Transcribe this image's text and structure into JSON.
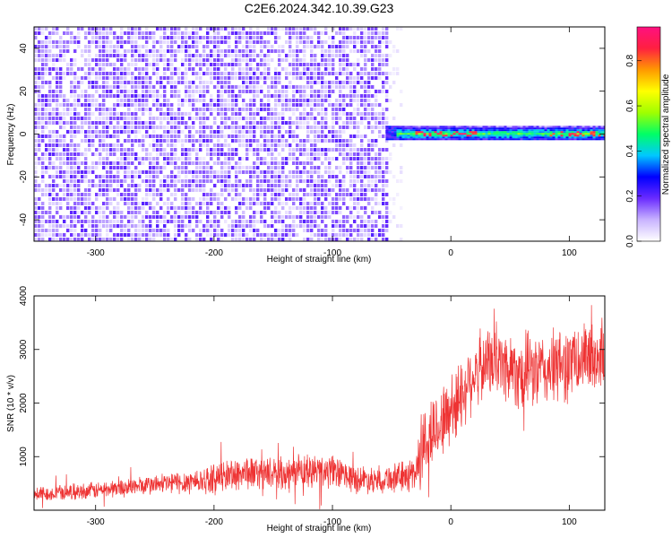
{
  "chart_data": [
    {
      "type": "heatmap",
      "title": "C2E6.2024.342.10.39.G23",
      "xlabel": "Height of straight line (km)",
      "ylabel": "Frequency (Hz)",
      "xlim": [
        -352,
        130
      ],
      "ylim": [
        -50,
        50
      ],
      "xticks": [
        -300,
        -200,
        -100,
        0,
        100
      ],
      "yticks": [
        -40,
        -20,
        0,
        20,
        40
      ],
      "colorbar": {
        "label": "Normalized spectral amplitude",
        "range": [
          0,
          0.95
        ],
        "ticks": [
          0.0,
          0.2,
          0.4,
          0.6,
          0.8
        ]
      },
      "regions": [
        {
          "x_range": [
            -352,
            -55
          ],
          "freq_range": [
            -50,
            50
          ],
          "amplitude": "low (0.0–0.15), noisy speckle"
        },
        {
          "x_range": [
            -55,
            130
          ],
          "freq_range": [
            -3,
            5
          ],
          "amplitude": "narrow line near 0–2 Hz, 0.3–0.95 with peaks ~0.9"
        }
      ],
      "grid": false
    },
    {
      "type": "line",
      "xlabel": "Height of straight line (km)",
      "ylabel": "SNR (10 * v/v)",
      "xlim": [
        -352,
        130
      ],
      "ylim": [
        0,
        4000
      ],
      "xticks": [
        -300,
        -200,
        -100,
        0,
        100
      ],
      "yticks": [
        1000,
        2000,
        3000,
        4000
      ],
      "series": [
        {
          "color": "#ee3333",
          "x": [
            -352,
            -300,
            -250,
            -200,
            -180,
            -150,
            -120,
            -100,
            -80,
            -60,
            -40,
            -30,
            -25,
            -20,
            -10,
            0,
            10,
            20,
            30,
            40,
            60,
            80,
            100,
            110,
            120,
            130
          ],
          "y_mean": [
            300,
            370,
            480,
            580,
            700,
            690,
            720,
            720,
            580,
            580,
            620,
            700,
            1100,
            1350,
            1600,
            1850,
            2200,
            2600,
            2750,
            2750,
            2600,
            2600,
            2750,
            2800,
            2850,
            2900
          ],
          "y_spread": [
            130,
            150,
            180,
            260,
            320,
            270,
            320,
            300,
            250,
            250,
            280,
            350,
            700,
            700,
            600,
            700,
            650,
            650,
            600,
            650,
            700,
            650,
            700,
            650,
            650,
            600
          ]
        }
      ],
      "grid": false
    }
  ],
  "colors": {
    "noise": "#6b1fe8",
    "line": "#ee3333",
    "colormap": [
      "#ffffff",
      "#c8b3ff",
      "#6a2bff",
      "#0000ff",
      "#00c8ff",
      "#00ff66",
      "#a0ff00",
      "#ffff00",
      "#ff9900",
      "#ff2040",
      "#ff1080"
    ]
  }
}
